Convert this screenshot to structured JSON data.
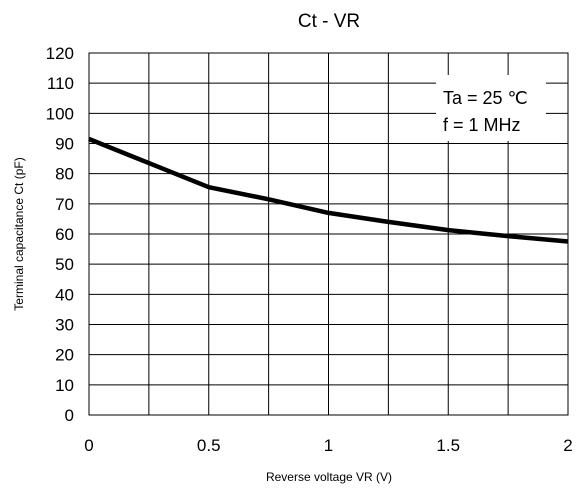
{
  "chart_data": {
    "type": "line",
    "title": "Ct - VR",
    "xlabel": "Reverse voltage VR (V)",
    "ylabel": "Terminal capacitance Ct (pF)",
    "xlim": [
      0,
      2
    ],
    "ylim": [
      0,
      120
    ],
    "xticks": [
      "0",
      "0.5",
      "1",
      "1.5",
      "2"
    ],
    "yticks": [
      "0",
      "10",
      "20",
      "30",
      "40",
      "50",
      "60",
      "70",
      "80",
      "90",
      "100",
      "110",
      "120"
    ],
    "grid": true,
    "annotations": [
      "Ta = 25 ℃",
      "f = 1 MHz"
    ],
    "series": [
      {
        "x": [
          0,
          0.25,
          0.5,
          0.75,
          1.0,
          1.25,
          1.5,
          1.75,
          2.0
        ],
        "y": [
          91.5,
          83.5,
          75.5,
          71.5,
          67,
          64,
          61.3,
          59.3,
          57.5
        ]
      }
    ],
    "colors": {
      "line": "#000000",
      "grid": "#000000",
      "background": "#ffffff"
    }
  }
}
